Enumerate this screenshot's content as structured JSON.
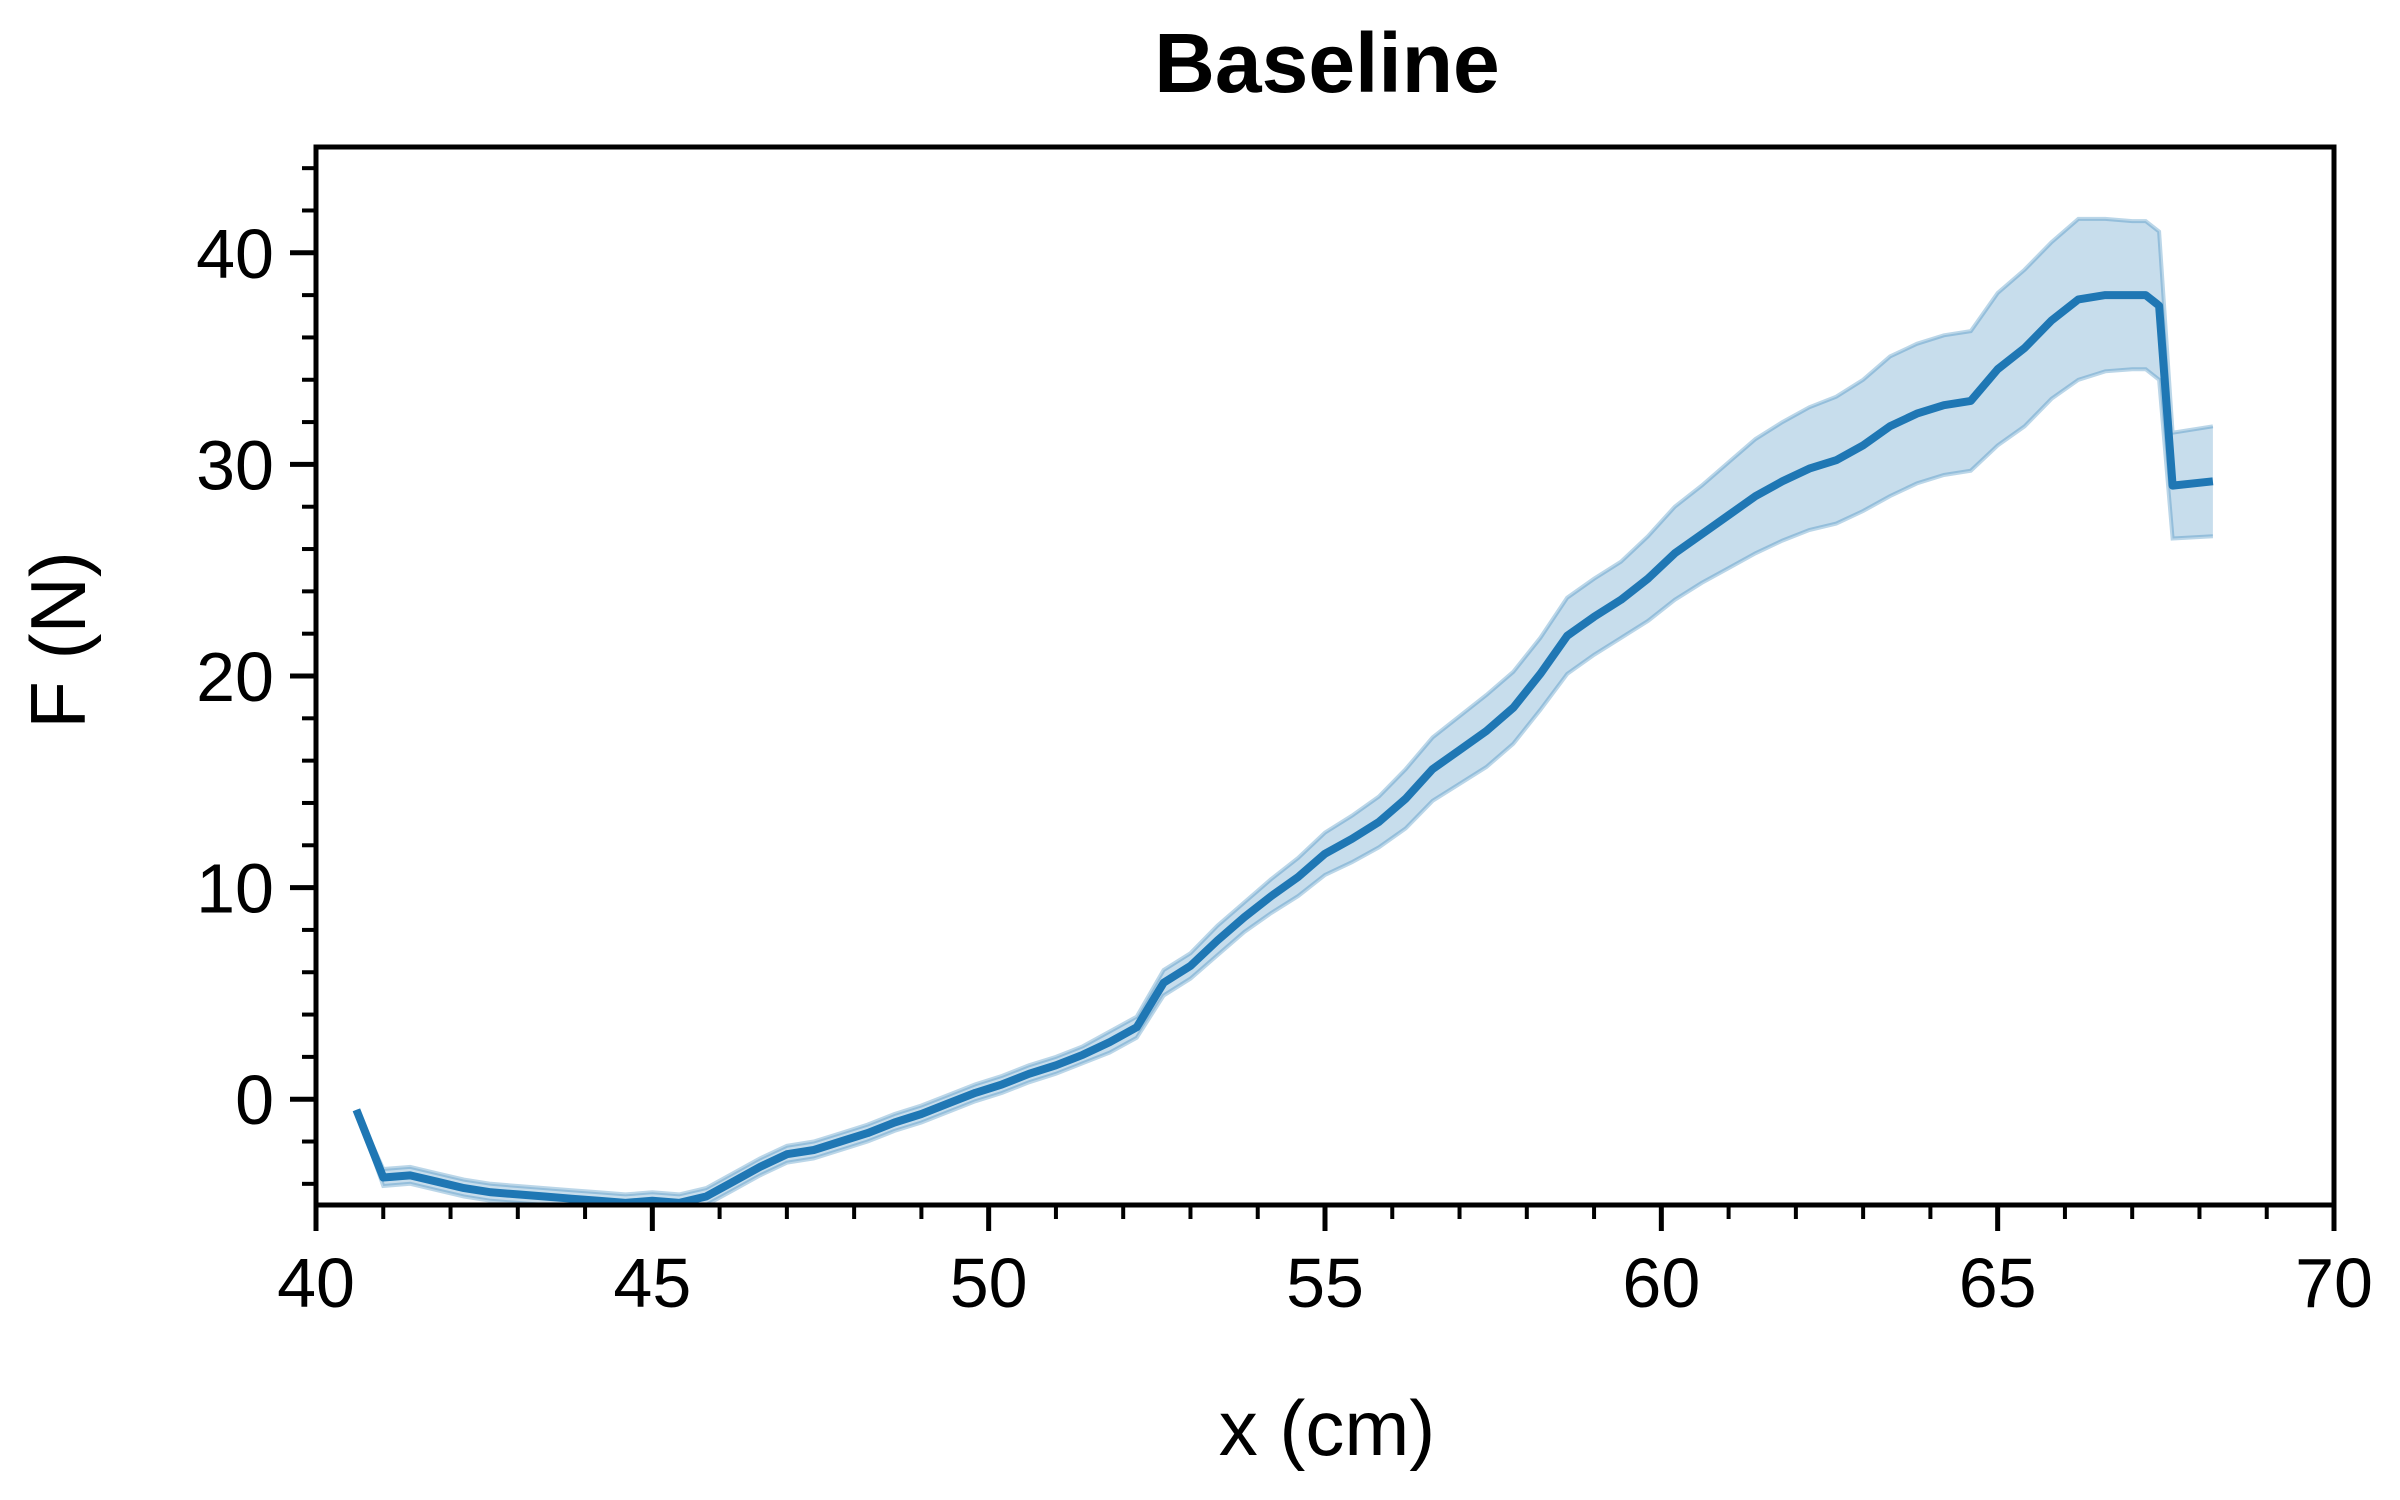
{
  "chart_data": {
    "type": "line",
    "title": "Baseline",
    "xlabel": "x (cm)",
    "ylabel": "F (N)",
    "xlim": [
      40,
      70
    ],
    "ylim": [
      -5,
      45
    ],
    "x_ticks": [
      40,
      45,
      50,
      55,
      60,
      65,
      70
    ],
    "y_ticks": [
      0,
      10,
      20,
      30,
      40
    ],
    "x_minor_step": 1,
    "y_minor_step": 2,
    "grid": false,
    "legend": "none",
    "colors": {
      "line": "#1f77b4",
      "band": "#1f77b4"
    },
    "series": [
      {
        "x": [
          40.6,
          41.0,
          41.4,
          41.8,
          42.2,
          42.6,
          43.0,
          43.4,
          43.8,
          44.2,
          44.6,
          45.0,
          45.4,
          45.8,
          46.2,
          46.6,
          47.0,
          47.4,
          47.8,
          48.2,
          48.6,
          49.0,
          49.4,
          49.8,
          50.2,
          50.6,
          51.0,
          51.4,
          51.8,
          52.2,
          52.6,
          53.0,
          53.4,
          53.8,
          54.2,
          54.6,
          55.0,
          55.4,
          55.8,
          56.2,
          56.6,
          57.0,
          57.4,
          57.8,
          58.2,
          58.6,
          59.0,
          59.4,
          59.8,
          60.2,
          60.6,
          61.0,
          61.4,
          61.8,
          62.2,
          62.6,
          63.0,
          63.4,
          63.8,
          64.2,
          64.6,
          65.0,
          65.4,
          65.8,
          66.2,
          66.6,
          67.0,
          67.2,
          67.4,
          67.6,
          68.2
        ],
        "y": [
          -0.5,
          -3.7,
          -3.6,
          -3.9,
          -4.2,
          -4.4,
          -4.5,
          -4.6,
          -4.7,
          -4.8,
          -4.9,
          -4.8,
          -4.9,
          -4.6,
          -3.9,
          -3.2,
          -2.6,
          -2.4,
          -2.0,
          -1.6,
          -1.1,
          -0.7,
          -0.2,
          0.3,
          0.7,
          1.2,
          1.6,
          2.1,
          2.7,
          3.4,
          5.5,
          6.3,
          7.5,
          8.6,
          9.6,
          10.5,
          11.6,
          12.3,
          13.1,
          14.2,
          15.6,
          16.5,
          17.4,
          18.5,
          20.1,
          21.9,
          22.8,
          23.6,
          24.6,
          25.8,
          26.7,
          27.6,
          28.5,
          29.2,
          29.8,
          30.2,
          30.9,
          31.8,
          32.4,
          32.8,
          33.0,
          34.5,
          35.5,
          36.8,
          37.8,
          38.0,
          38.0,
          38.0,
          37.5,
          29.0,
          29.2
        ],
        "lower": [
          -0.5,
          -4.1,
          -4.0,
          -4.3,
          -4.6,
          -4.8,
          -4.9,
          -5.0,
          -5.0,
          -5.0,
          -5.0,
          -5.0,
          -5.0,
          -5.0,
          -4.3,
          -3.6,
          -3.0,
          -2.8,
          -2.4,
          -2.0,
          -1.5,
          -1.1,
          -0.6,
          -0.1,
          0.3,
          0.8,
          1.2,
          1.7,
          2.2,
          2.9,
          4.9,
          5.7,
          6.8,
          7.9,
          8.8,
          9.6,
          10.6,
          11.2,
          11.9,
          12.8,
          14.1,
          14.9,
          15.7,
          16.8,
          18.4,
          20.1,
          21.0,
          21.8,
          22.6,
          23.6,
          24.4,
          25.1,
          25.8,
          26.4,
          26.9,
          27.2,
          27.8,
          28.5,
          29.1,
          29.5,
          29.7,
          30.9,
          31.8,
          33.1,
          34.0,
          34.4,
          34.5,
          34.5,
          34.0,
          26.5,
          26.6
        ],
        "upper": [
          -0.5,
          -3.3,
          -3.2,
          -3.5,
          -3.8,
          -4.0,
          -4.1,
          -4.2,
          -4.3,
          -4.4,
          -4.5,
          -4.4,
          -4.5,
          -4.2,
          -3.5,
          -2.8,
          -2.2,
          -2.0,
          -1.6,
          -1.2,
          -0.7,
          -0.3,
          0.2,
          0.7,
          1.1,
          1.6,
          2.0,
          2.5,
          3.2,
          3.9,
          6.1,
          6.9,
          8.2,
          9.3,
          10.4,
          11.4,
          12.6,
          13.4,
          14.3,
          15.6,
          17.1,
          18.1,
          19.1,
          20.2,
          21.8,
          23.7,
          24.6,
          25.4,
          26.6,
          28.0,
          29.0,
          30.1,
          31.2,
          32.0,
          32.7,
          33.2,
          34.0,
          35.1,
          35.7,
          36.1,
          36.3,
          38.1,
          39.2,
          40.5,
          41.6,
          41.6,
          41.5,
          41.5,
          41.0,
          31.5,
          31.8
        ]
      }
    ]
  }
}
